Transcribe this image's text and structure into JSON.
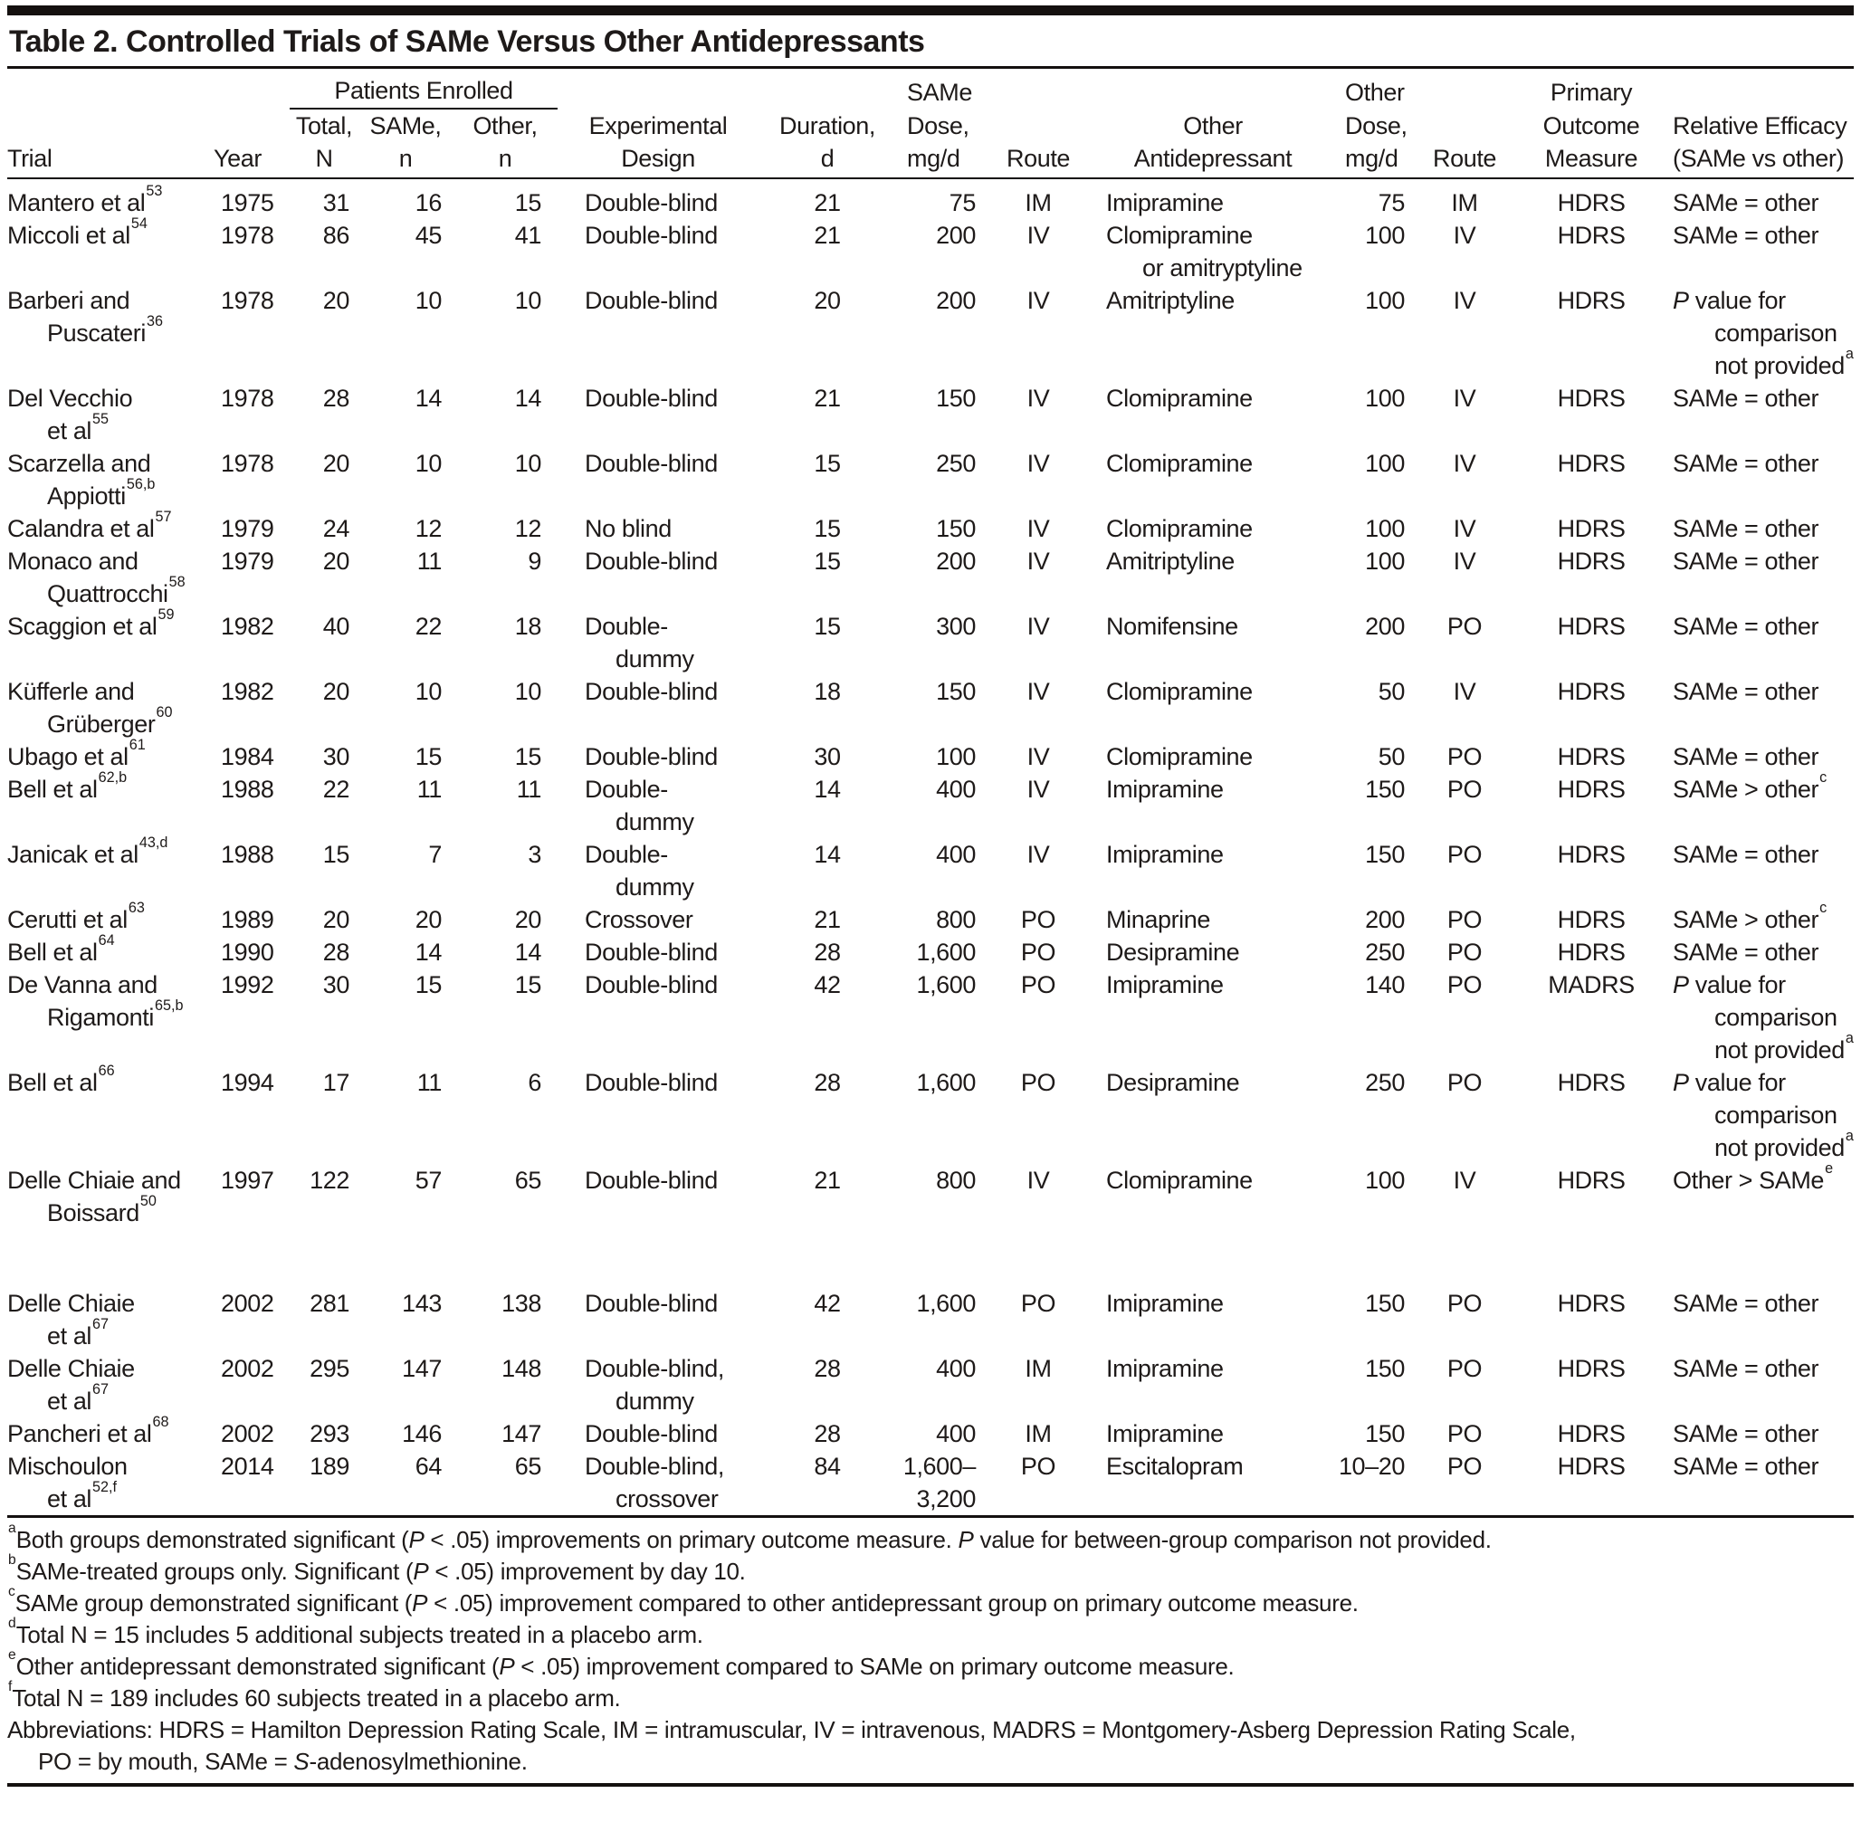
{
  "document": {
    "title": "Table 2. Controlled Trials of SAMe Versus Other Antidepressants"
  },
  "header": {
    "patients_enrolled": "Patients Enrolled",
    "trial": "Trial",
    "year": "Year",
    "total_line1": "Total,",
    "total_line2": "N",
    "same_line1": "SAMe,",
    "same_line2": "n",
    "other_line1": "Other,",
    "other_line2": "n",
    "design_line1": "Experimental",
    "design_line2": "Design",
    "duration_line1": "Duration,",
    "duration_line2": "d",
    "same_dose_line1": "SAMe",
    "same_dose_line2": "Dose,",
    "same_dose_line3": "mg/d",
    "route1": "Route",
    "other_drug_line1": "Other",
    "other_drug_line2": "Antidepressant",
    "other_dose_line1": "Other",
    "other_dose_line2": "Dose,",
    "other_dose_line3": "mg/d",
    "route2": "Route",
    "outcome_line1": "Primary",
    "outcome_line2": "Outcome",
    "outcome_line3": "Measure",
    "efficacy_line1": "Relative Efficacy",
    "efficacy_line2": "(SAMe vs other)"
  },
  "rows": [
    {
      "trial_lines": [
        "Mantero et al"
      ],
      "trial_ref": "53",
      "year": "1975",
      "total_n": "31",
      "same_n": "16",
      "other_n": "15",
      "design_lines": [
        "Double-blind"
      ],
      "duration_d": "21",
      "same_dose_lines": [
        "75"
      ],
      "same_route": "IM",
      "other_drug_lines": [
        "Imipramine"
      ],
      "other_dose": "75",
      "other_route": "IM",
      "outcome": "HDRS",
      "efficacy_lines": [
        "SAMe = other"
      ],
      "efficacy_ref": ""
    },
    {
      "trial_lines": [
        "Miccoli et al"
      ],
      "trial_ref": "54",
      "year": "1978",
      "total_n": "86",
      "same_n": "45",
      "other_n": "41",
      "design_lines": [
        "Double-blind"
      ],
      "duration_d": "21",
      "same_dose_lines": [
        "200"
      ],
      "same_route": "IV",
      "other_drug_lines": [
        "Clomipramine",
        "or amitryptyline"
      ],
      "other_dose": "100",
      "other_route": "IV",
      "outcome": "HDRS",
      "efficacy_lines": [
        "SAMe = other"
      ],
      "efficacy_ref": ""
    },
    {
      "trial_lines": [
        "Barberi and",
        "Puscateri"
      ],
      "trial_ref": "36",
      "year": "1978",
      "total_n": "20",
      "same_n": "10",
      "other_n": "10",
      "design_lines": [
        "Double-blind"
      ],
      "duration_d": "20",
      "same_dose_lines": [
        "200"
      ],
      "same_route": "IV",
      "other_drug_lines": [
        "Amitriptyline"
      ],
      "other_dose": "100",
      "other_route": "IV",
      "outcome": "HDRS",
      "efficacy_lines": [
        "P value for",
        "comparison",
        "not provided"
      ],
      "efficacy_ref": "a"
    },
    {
      "trial_lines": [
        "Del Vecchio",
        "et al"
      ],
      "trial_ref": "55",
      "year": "1978",
      "total_n": "28",
      "same_n": "14",
      "other_n": "14",
      "design_lines": [
        "Double-blind"
      ],
      "duration_d": "21",
      "same_dose_lines": [
        "150"
      ],
      "same_route": "IV",
      "other_drug_lines": [
        "Clomipramine"
      ],
      "other_dose": "100",
      "other_route": "IV",
      "outcome": "HDRS",
      "efficacy_lines": [
        "SAMe = other"
      ],
      "efficacy_ref": ""
    },
    {
      "trial_lines": [
        "Scarzella and",
        "Appiotti"
      ],
      "trial_ref": "56,b",
      "year": "1978",
      "total_n": "20",
      "same_n": "10",
      "other_n": "10",
      "design_lines": [
        "Double-blind"
      ],
      "duration_d": "15",
      "same_dose_lines": [
        "250"
      ],
      "same_route": "IV",
      "other_drug_lines": [
        "Clomipramine"
      ],
      "other_dose": "100",
      "other_route": "IV",
      "outcome": "HDRS",
      "efficacy_lines": [
        "SAMe = other"
      ],
      "efficacy_ref": ""
    },
    {
      "trial_lines": [
        "Calandra et al"
      ],
      "trial_ref": "57",
      "year": "1979",
      "total_n": "24",
      "same_n": "12",
      "other_n": "12",
      "design_lines": [
        "No blind"
      ],
      "duration_d": "15",
      "same_dose_lines": [
        "150"
      ],
      "same_route": "IV",
      "other_drug_lines": [
        "Clomipramine"
      ],
      "other_dose": "100",
      "other_route": "IV",
      "outcome": "HDRS",
      "efficacy_lines": [
        "SAMe = other"
      ],
      "efficacy_ref": ""
    },
    {
      "trial_lines": [
        "Monaco and",
        "Quattrocchi"
      ],
      "trial_ref": "58",
      "year": "1979",
      "total_n": "20",
      "same_n": "11",
      "other_n": "9",
      "design_lines": [
        "Double-blind"
      ],
      "duration_d": "15",
      "same_dose_lines": [
        "200"
      ],
      "same_route": "IV",
      "other_drug_lines": [
        "Amitriptyline"
      ],
      "other_dose": "100",
      "other_route": "IV",
      "outcome": "HDRS",
      "efficacy_lines": [
        "SAMe = other"
      ],
      "efficacy_ref": ""
    },
    {
      "trial_lines": [
        "Scaggion et al"
      ],
      "trial_ref": "59",
      "year": "1982",
      "total_n": "40",
      "same_n": "22",
      "other_n": "18",
      "design_lines": [
        "Double-",
        "dummy"
      ],
      "duration_d": "15",
      "same_dose_lines": [
        "300"
      ],
      "same_route": "IV",
      "other_drug_lines": [
        "Nomifensine"
      ],
      "other_dose": "200",
      "other_route": "PO",
      "outcome": "HDRS",
      "efficacy_lines": [
        "SAMe = other"
      ],
      "efficacy_ref": ""
    },
    {
      "trial_lines": [
        "Küfferle and",
        "Grüberger"
      ],
      "trial_ref": "60",
      "year": "1982",
      "total_n": "20",
      "same_n": "10",
      "other_n": "10",
      "design_lines": [
        "Double-blind"
      ],
      "duration_d": "18",
      "same_dose_lines": [
        "150"
      ],
      "same_route": "IV",
      "other_drug_lines": [
        "Clomipramine"
      ],
      "other_dose": "50",
      "other_route": "IV",
      "outcome": "HDRS",
      "efficacy_lines": [
        "SAMe = other"
      ],
      "efficacy_ref": ""
    },
    {
      "trial_lines": [
        "Ubago et al"
      ],
      "trial_ref": "61",
      "year": "1984",
      "total_n": "30",
      "same_n": "15",
      "other_n": "15",
      "design_lines": [
        "Double-blind"
      ],
      "duration_d": "30",
      "same_dose_lines": [
        "100"
      ],
      "same_route": "IV",
      "other_drug_lines": [
        "Clomipramine"
      ],
      "other_dose": "50",
      "other_route": "PO",
      "outcome": "HDRS",
      "efficacy_lines": [
        "SAMe = other"
      ],
      "efficacy_ref": ""
    },
    {
      "trial_lines": [
        "Bell et al"
      ],
      "trial_ref": "62,b",
      "year": "1988",
      "total_n": "22",
      "same_n": "11",
      "other_n": "11",
      "design_lines": [
        "Double-",
        "dummy"
      ],
      "duration_d": "14",
      "same_dose_lines": [
        "400"
      ],
      "same_route": "IV",
      "other_drug_lines": [
        "Imipramine"
      ],
      "other_dose": "150",
      "other_route": "PO",
      "outcome": "HDRS",
      "efficacy_lines": [
        "SAMe > other"
      ],
      "efficacy_ref": "c"
    },
    {
      "trial_lines": [
        "Janicak et al"
      ],
      "trial_ref": "43,d",
      "year": "1988",
      "total_n": "15",
      "same_n": "7",
      "other_n": "3",
      "design_lines": [
        "Double-",
        "dummy"
      ],
      "duration_d": "14",
      "same_dose_lines": [
        "400"
      ],
      "same_route": "IV",
      "other_drug_lines": [
        "Imipramine"
      ],
      "other_dose": "150",
      "other_route": "PO",
      "outcome": "HDRS",
      "efficacy_lines": [
        "SAMe = other"
      ],
      "efficacy_ref": ""
    },
    {
      "trial_lines": [
        "Cerutti et al"
      ],
      "trial_ref": "63",
      "year": "1989",
      "total_n": "20",
      "same_n": "20",
      "other_n": "20",
      "design_lines": [
        "Crossover"
      ],
      "duration_d": "21",
      "same_dose_lines": [
        "800"
      ],
      "same_route": "PO",
      "other_drug_lines": [
        "Minaprine"
      ],
      "other_dose": "200",
      "other_route": "PO",
      "outcome": "HDRS",
      "efficacy_lines": [
        "SAMe > other"
      ],
      "efficacy_ref": "c"
    },
    {
      "trial_lines": [
        "Bell et al"
      ],
      "trial_ref": "64",
      "year": "1990",
      "total_n": "28",
      "same_n": "14",
      "other_n": "14",
      "design_lines": [
        "Double-blind"
      ],
      "duration_d": "28",
      "same_dose_lines": [
        "1,600"
      ],
      "same_route": "PO",
      "other_drug_lines": [
        "Desipramine"
      ],
      "other_dose": "250",
      "other_route": "PO",
      "outcome": "HDRS",
      "efficacy_lines": [
        "SAMe = other"
      ],
      "efficacy_ref": ""
    },
    {
      "trial_lines": [
        "De Vanna and",
        "Rigamonti"
      ],
      "trial_ref": "65,b",
      "year": "1992",
      "total_n": "30",
      "same_n": "15",
      "other_n": "15",
      "design_lines": [
        "Double-blind"
      ],
      "duration_d": "42",
      "same_dose_lines": [
        "1,600"
      ],
      "same_route": "PO",
      "other_drug_lines": [
        "Imipramine"
      ],
      "other_dose": "140",
      "other_route": "PO",
      "outcome": "MADRS",
      "efficacy_lines": [
        "P value for",
        "comparison",
        "not provided"
      ],
      "efficacy_ref": "a"
    },
    {
      "trial_lines": [
        "Bell et al"
      ],
      "trial_ref": "66",
      "year": "1994",
      "total_n": "17",
      "same_n": "11",
      "other_n": "6",
      "design_lines": [
        "Double-blind"
      ],
      "duration_d": "28",
      "same_dose_lines": [
        "1,600"
      ],
      "same_route": "PO",
      "other_drug_lines": [
        "Desipramine"
      ],
      "other_dose": "250",
      "other_route": "PO",
      "outcome": "HDRS",
      "efficacy_lines": [
        "P value for",
        "comparison",
        "not provided"
      ],
      "efficacy_ref": "a"
    },
    {
      "trial_lines": [
        "Delle Chiaie and",
        "Boissard"
      ],
      "trial_ref": "50",
      "year": "1997",
      "total_n": "122",
      "same_n": "57",
      "other_n": "65",
      "design_lines": [
        "Double-blind"
      ],
      "duration_d": "21",
      "same_dose_lines": [
        "800"
      ],
      "same_route": "IV",
      "other_drug_lines": [
        "Clomipramine"
      ],
      "other_dose": "100",
      "other_route": "IV",
      "outcome": "HDRS",
      "efficacy_lines": [
        "Other > SAMe"
      ],
      "efficacy_ref": "e",
      "pad_after": true
    },
    {
      "trial_lines": [
        "Delle Chiaie",
        "et al"
      ],
      "trial_ref": "67",
      "year": "2002",
      "total_n": "281",
      "same_n": "143",
      "other_n": "138",
      "design_lines": [
        "Double-blind"
      ],
      "duration_d": "42",
      "same_dose_lines": [
        "1,600"
      ],
      "same_route": "PO",
      "other_drug_lines": [
        "Imipramine"
      ],
      "other_dose": "150",
      "other_route": "PO",
      "outcome": "HDRS",
      "efficacy_lines": [
        "SAMe = other"
      ],
      "efficacy_ref": ""
    },
    {
      "trial_lines": [
        "Delle Chiaie",
        "et al"
      ],
      "trial_ref": "67",
      "year": "2002",
      "total_n": "295",
      "same_n": "147",
      "other_n": "148",
      "design_lines": [
        "Double-blind,",
        "dummy"
      ],
      "duration_d": "28",
      "same_dose_lines": [
        "400"
      ],
      "same_route": "IM",
      "other_drug_lines": [
        "Imipramine"
      ],
      "other_dose": "150",
      "other_route": "PO",
      "outcome": "HDRS",
      "efficacy_lines": [
        "SAMe = other"
      ],
      "efficacy_ref": ""
    },
    {
      "trial_lines": [
        "Pancheri et al"
      ],
      "trial_ref": "68",
      "year": "2002",
      "total_n": "293",
      "same_n": "146",
      "other_n": "147",
      "design_lines": [
        "Double-blind"
      ],
      "duration_d": "28",
      "same_dose_lines": [
        "400"
      ],
      "same_route": "IM",
      "other_drug_lines": [
        "Imipramine"
      ],
      "other_dose": "150",
      "other_route": "PO",
      "outcome": "HDRS",
      "efficacy_lines": [
        "SAMe = other"
      ],
      "efficacy_ref": ""
    },
    {
      "trial_lines": [
        "Mischoulon",
        "et al"
      ],
      "trial_ref": "52,f",
      "year": "2014",
      "total_n": "189",
      "same_n": "64",
      "other_n": "65",
      "design_lines": [
        "Double-blind,",
        "crossover"
      ],
      "duration_d": "84",
      "same_dose_lines": [
        "1,600–",
        "3,200"
      ],
      "same_route": "PO",
      "other_drug_lines": [
        "Escitalopram"
      ],
      "other_dose": "10–20",
      "other_route": "PO",
      "outcome": "HDRS",
      "efficacy_lines": [
        "SAMe = other"
      ],
      "efficacy_ref": ""
    }
  ],
  "footnotes": [
    {
      "mark": "a",
      "text": "Both groups demonstrated significant (P < .05) improvements on primary outcome measure. P value for between-group comparison not provided."
    },
    {
      "mark": "b",
      "text": "SAMe-treated groups only. Significant (P < .05) improvement by day 10."
    },
    {
      "mark": "c",
      "text": "SAMe group demonstrated significant (P < .05) improvement compared to other antidepressant group on primary outcome measure."
    },
    {
      "mark": "d",
      "text": "Total N = 15 includes 5 additional subjects treated in a placebo arm."
    },
    {
      "mark": "e",
      "text": "Other antidepressant demonstrated significant (P < .05) improvement compared to SAMe on primary outcome measure."
    },
    {
      "mark": "f",
      "text": "Total N = 189 includes 60 subjects treated in a placebo arm."
    }
  ],
  "abbreviations": {
    "line1": "Abbreviations: HDRS = Hamilton Depression Rating Scale, IM = intramuscular, IV = intravenous, MADRS = Montgomery-Asberg Depression Rating Scale,",
    "line2": "PO = by mouth, SAMe = S-adenosylmethionine."
  }
}
